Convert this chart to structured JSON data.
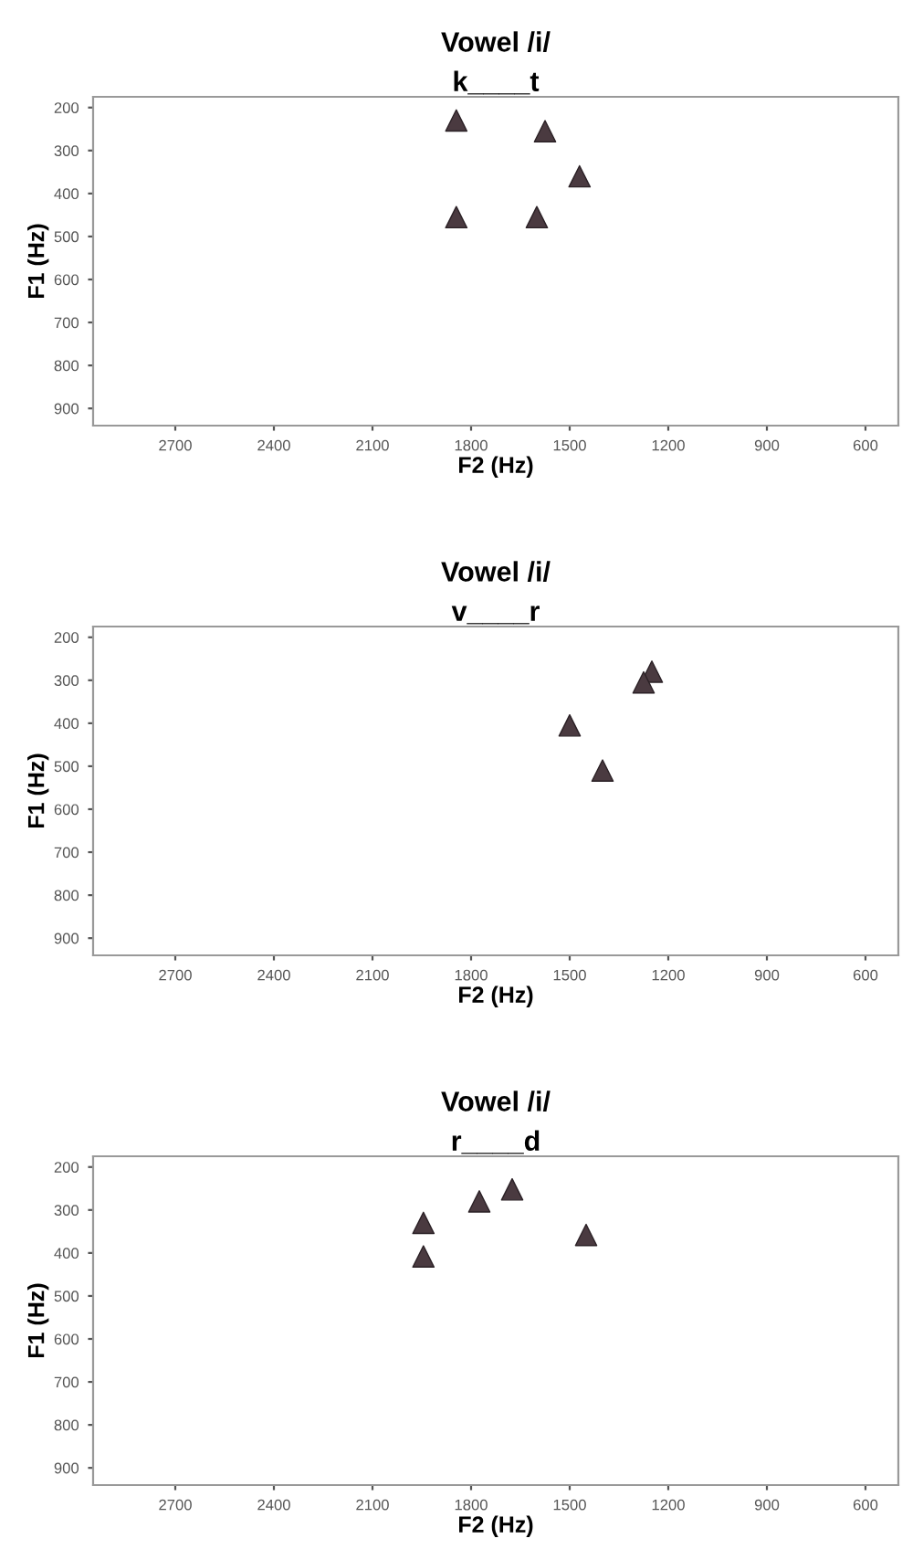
{
  "chart_data": [
    {
      "type": "scatter",
      "title": "Vowel /i/",
      "subtitle": "k____t",
      "xlabel": "F2 (Hz)",
      "ylabel": "F1 (Hz)",
      "marker": "triangle",
      "grid": false,
      "legend": false,
      "series": [
        {
          "color": "#4a3a40",
          "x": [
            1845,
            1575,
            1470,
            1845,
            1600
          ],
          "values": [
            230,
            255,
            360,
            455,
            455
          ]
        }
      ],
      "xlim": [
        2950,
        500
      ],
      "xticks": [
        2700,
        2400,
        2100,
        1800,
        1500,
        1200,
        900,
        600
      ],
      "ylim": [
        940,
        175
      ],
      "yticks": [
        200,
        300,
        400,
        500,
        600,
        700,
        800,
        900
      ]
    },
    {
      "type": "scatter",
      "title": "Vowel /i/",
      "subtitle": "v____r",
      "xlabel": "F2 (Hz)",
      "ylabel": "F1 (Hz)",
      "marker": "triangle",
      "grid": false,
      "legend": false,
      "series": [
        {
          "color": "#4a3a40",
          "x": [
            1250,
            1275,
            1500,
            1400
          ],
          "values": [
            280,
            305,
            405,
            510
          ]
        }
      ],
      "xlim": [
        2950,
        500
      ],
      "xticks": [
        2700,
        2400,
        2100,
        1800,
        1500,
        1200,
        900,
        600
      ],
      "ylim": [
        940,
        175
      ],
      "yticks": [
        200,
        300,
        400,
        500,
        600,
        700,
        800,
        900
      ]
    },
    {
      "type": "scatter",
      "title": "Vowel /i/",
      "subtitle": "r____d",
      "xlabel": "F2 (Hz)",
      "ylabel": "F1 (Hz)",
      "marker": "triangle",
      "grid": false,
      "legend": false,
      "series": [
        {
          "color": "#4a3a40",
          "x": [
            1945,
            1945,
            1775,
            1675,
            1450
          ],
          "values": [
            330,
            408,
            280,
            252,
            358
          ]
        }
      ],
      "xlim": [
        2950,
        500
      ],
      "xticks": [
        2700,
        2400,
        2100,
        1800,
        1500,
        1200,
        900,
        600
      ],
      "ylim": [
        940,
        175
      ],
      "yticks": [
        200,
        300,
        400,
        500,
        600,
        700,
        800,
        900
      ]
    }
  ]
}
